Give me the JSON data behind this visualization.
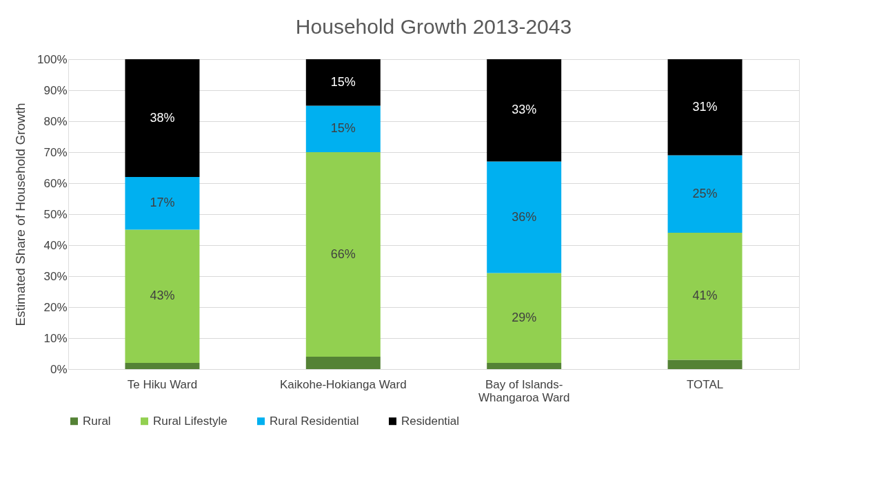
{
  "chart_data": {
    "type": "bar",
    "title": "Household Growth 2013-2043",
    "ylabel": "Estimated Share of Household Growth",
    "stacked": true,
    "categories": [
      "Te Hiku Ward",
      "Kaikohe-Hokianga Ward",
      "Bay of Islands-Whangaroa Ward",
      "TOTAL"
    ],
    "series": [
      {
        "name": "Rural",
        "color": "#548235",
        "values": [
          2,
          4,
          2,
          3
        ],
        "value_labels": [
          null,
          null,
          null,
          null
        ]
      },
      {
        "name": "Rural Lifestyle",
        "color": "#92d050",
        "values": [
          43,
          66,
          29,
          41
        ],
        "value_labels": [
          "43%",
          "66%",
          "29%",
          "41%"
        ]
      },
      {
        "name": "Rural Residential",
        "color": "#00b0f0",
        "values": [
          17,
          15,
          36,
          25
        ],
        "value_labels": [
          "17%",
          "15%",
          "36%",
          "25%"
        ]
      },
      {
        "name": "Residential",
        "color": "#000000",
        "values": [
          38,
          15,
          33,
          31
        ],
        "value_labels": [
          "38%",
          "15%",
          "33%",
          "31%"
        ]
      }
    ],
    "ylim": [
      0,
      100
    ],
    "yticks": [
      {
        "value": 0,
        "label": "0%"
      },
      {
        "value": 10,
        "label": "10%"
      },
      {
        "value": 20,
        "label": "20%"
      },
      {
        "value": 30,
        "label": "30%"
      },
      {
        "value": 40,
        "label": "40%"
      },
      {
        "value": 50,
        "label": "50%"
      },
      {
        "value": 60,
        "label": "60%"
      },
      {
        "value": 70,
        "label": "70%"
      },
      {
        "value": 80,
        "label": "80%"
      },
      {
        "value": 90,
        "label": "90%"
      },
      {
        "value": 100,
        "label": "100%"
      }
    ],
    "grid": "y",
    "legend": "bottom"
  }
}
